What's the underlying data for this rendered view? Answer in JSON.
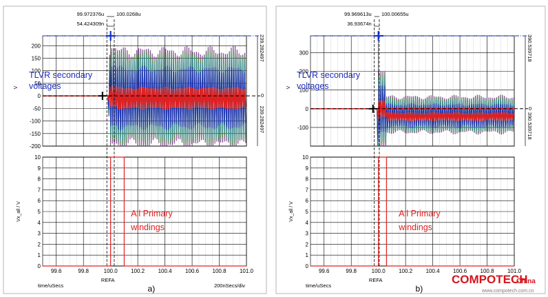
{
  "colors": {
    "trace_blue": "#1f2fb8",
    "trace_red": "#e02020",
    "trace_green": "#3a7a3a",
    "trace_teal": "#2a8a8a",
    "trace_purple": "#7a3a8a",
    "marker_blue": "#1030d0",
    "primary_red": "#e02020",
    "logo_red": "#d4141c"
  },
  "panels": [
    {
      "id": "a",
      "panel_label": "a)",
      "annotation_secondary": [
        "TLVR secondary",
        "voltages"
      ],
      "annotation_primary": [
        "All Primary",
        "windings"
      ],
      "cursor_labels": {
        "top_left": "99.972376u",
        "top_right": "100.0268u",
        "delta": "54.424309n"
      },
      "right_labels": {
        "top": "239.282497",
        "zero": "0",
        "mid": "239.282497"
      },
      "x_footer": {
        "left": "time/uSecs",
        "right": "200nSecs/div",
        "ref": "REFA"
      },
      "upper_ylabel": "V",
      "lower_ylabel": "Vx_all / V",
      "chart_data": {
        "type": "line",
        "x": {
          "min": 99.5,
          "max": 101.0,
          "ticks": [
            99.6,
            99.8,
            100.0,
            100.2,
            100.4,
            100.6,
            100.8,
            101.0
          ],
          "labels": [
            "99.6",
            "99.8",
            "100.0",
            "100.2",
            "100.4",
            "100.6",
            "100.8",
            "101.0"
          ]
        },
        "upper": {
          "ylim": [
            -200,
            239.28
          ],
          "ticks": [
            -200,
            -150,
            -100,
            -50,
            0,
            50,
            100,
            150,
            200
          ],
          "labels": [
            "-200",
            "-150",
            "-100",
            "-50",
            "0",
            "50",
            "100",
            "150",
            "200"
          ],
          "event_time": 99.98,
          "settle_time": 100.05,
          "spike_peak": 230,
          "band_amplitude": 190,
          "settled_amplitude": 185,
          "settled_offset": -10,
          "marker_peak": {
            "x": 100.0,
            "y": 239.28
          },
          "marker_zero": {
            "x": 99.94,
            "y": 0
          }
        },
        "lower": {
          "ylim": [
            0,
            10
          ],
          "ticks": [
            0,
            1,
            2,
            3,
            4,
            5,
            6,
            7,
            8,
            9,
            10
          ],
          "labels": [
            "0",
            "1",
            "2",
            "3",
            "4",
            "5",
            "6",
            "7",
            "8",
            "9",
            "10"
          ],
          "pulse": {
            "start": 100.0,
            "end": 100.1,
            "high": 10,
            "low": 0
          }
        },
        "cursors": [
          99.972376,
          100.0268
        ]
      }
    },
    {
      "id": "b",
      "panel_label": "b)",
      "annotation_secondary": [
        "TLVR secondary",
        "voltages"
      ],
      "annotation_primary": [
        "All Primary",
        "windings"
      ],
      "cursor_labels": {
        "top_left": "99.969613u",
        "top_right": "100.00655u",
        "delta": "36.93674n"
      },
      "right_labels": {
        "top": "390.539718",
        "zero": "0",
        "mid": "390.539718"
      },
      "x_footer": {
        "left": "time/uSecs",
        "right": "200nSecs/div",
        "ref": "REFA"
      },
      "upper_ylabel": "V",
      "lower_ylabel": "Vx_all / V",
      "chart_data": {
        "type": "line",
        "x": {
          "min": 99.5,
          "max": 101.0,
          "ticks": [
            99.6,
            99.8,
            100.0,
            100.2,
            100.4,
            100.6,
            100.8,
            101.0
          ],
          "labels": [
            "99.6",
            "99.8",
            "100.0",
            "100.2",
            "100.4",
            "100.6",
            "100.8",
            "101.0"
          ]
        },
        "upper": {
          "ylim": [
            -200,
            390.54
          ],
          "ticks": [
            -100,
            0,
            100,
            200,
            300
          ],
          "labels": [
            "-100",
            "0",
            "100",
            "200",
            "300"
          ],
          "event_time": 99.99,
          "settle_time": 100.06,
          "spike_peak": 390,
          "band_amplitude": 200,
          "settled_amplitude": 95,
          "settled_offset": -45,
          "marker_peak": {
            "x": 100.0,
            "y": 390.54
          },
          "marker_zero": {
            "x": 99.96,
            "y": 0
          }
        },
        "lower": {
          "ylim": [
            0,
            10
          ],
          "ticks": [
            0,
            1,
            2,
            3,
            4,
            5,
            6,
            7,
            8,
            9,
            10
          ],
          "labels": [
            "0",
            "1",
            "2",
            "3",
            "4",
            "5",
            "6",
            "7",
            "8",
            "9",
            "10"
          ],
          "pulse": {
            "start": 100.0,
            "end": 100.06,
            "high": 10,
            "low": 0
          }
        },
        "cursors": [
          99.969613,
          100.00655
        ]
      }
    }
  ],
  "logo": {
    "main": "COMPOTECH",
    "sub": "China",
    "url": "www.compotech.com.cn"
  }
}
